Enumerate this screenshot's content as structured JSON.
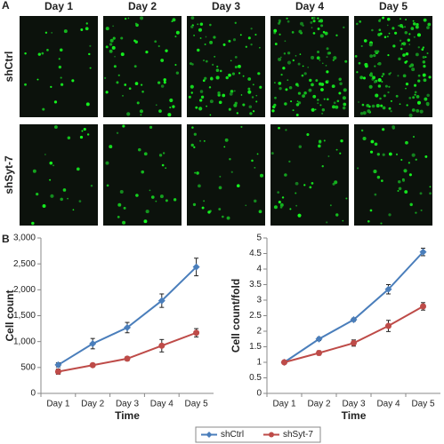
{
  "panel_a": {
    "label": "A",
    "columns": [
      "Day 1",
      "Day 2",
      "Day 3",
      "Day 4",
      "Day 5"
    ],
    "rows": [
      "shCtrl",
      "shSyt-7"
    ]
  },
  "panel_b": {
    "label": "B"
  },
  "chart_data": [
    {
      "type": "line",
      "xlabel": "Time",
      "ylabel": "Cell count",
      "categories": [
        "Day 1",
        "Day 2",
        "Day 3",
        "Day 4",
        "Day 5"
      ],
      "ylim": [
        0,
        3000
      ],
      "yticks": [
        0,
        {
          "value": 500,
          "label": "500"
        },
        {
          "value": 1000,
          "label": "1,000"
        },
        {
          "value": 1500,
          "label": "1,500"
        },
        {
          "value": 2000,
          "label": "2,000"
        },
        {
          "value": 2500,
          "label": "2,500"
        },
        {
          "value": 3000,
          "label": "3,000"
        }
      ],
      "legend": "bottom",
      "series": [
        {
          "name": "shCtrl",
          "color": "#4a7ebb",
          "marker": "diamond",
          "values": [
            550,
            960,
            1270,
            1790,
            2440
          ],
          "errors": [
            40,
            100,
            100,
            130,
            170
          ]
        },
        {
          "name": "shSyt-7",
          "color": "#be4b48",
          "marker": "circle",
          "values": [
            420,
            545,
            670,
            920,
            1170
          ],
          "errors": [
            50,
            30,
            40,
            120,
            80
          ]
        }
      ]
    },
    {
      "type": "line",
      "xlabel": "Time",
      "ylabel": "Cell count/fold",
      "categories": [
        "Day 1",
        "Day 2",
        "Day 3",
        "Day 4",
        "Day 5"
      ],
      "ylim": [
        0,
        5
      ],
      "yticks": [
        0,
        0.5,
        1,
        1.5,
        2,
        2.5,
        3,
        3.5,
        4,
        4.5,
        5
      ],
      "series": [
        {
          "color": "#4a7ebb",
          "marker": "diamond",
          "values": [
            1,
            1.75,
            2.37,
            3.35,
            4.55
          ],
          "errors": [
            0.05,
            0.05,
            0.05,
            0.15,
            0.12
          ]
        },
        {
          "color": "#be4b48",
          "marker": "circle",
          "values": [
            1,
            1.3,
            1.62,
            2.17,
            2.8
          ],
          "errors": [
            0.05,
            0.07,
            0.1,
            0.18,
            0.12
          ]
        }
      ]
    }
  ]
}
